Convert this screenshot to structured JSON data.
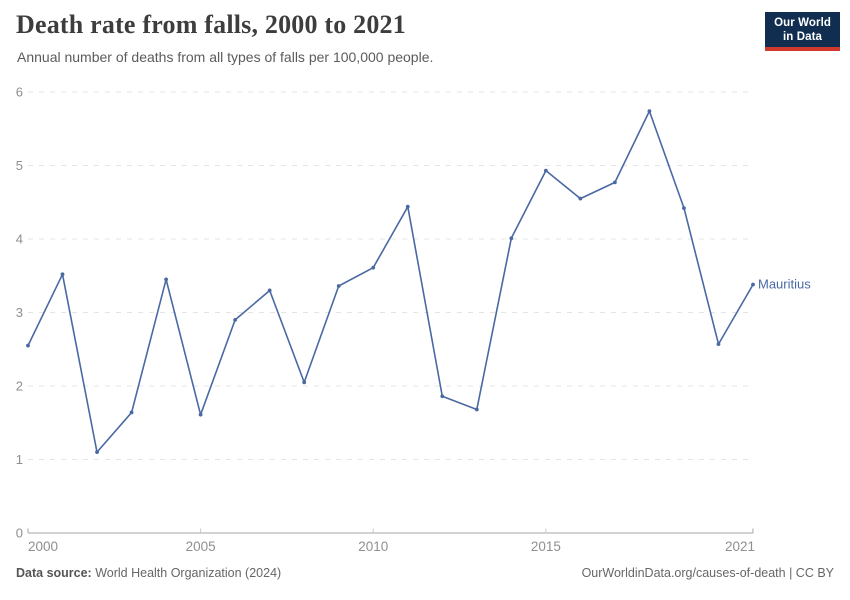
{
  "header": {
    "title": "Death rate from falls, 2000 to 2021",
    "subtitle": "Annual number of deaths from all types of falls per 100,000 people.",
    "logo": {
      "line1": "Our World",
      "line2": "in Data"
    }
  },
  "chart_data": {
    "type": "line",
    "title": "Death rate from falls, 2000 to 2021",
    "xlabel": "",
    "ylabel": "",
    "x": [
      2000,
      2001,
      2002,
      2003,
      2004,
      2005,
      2006,
      2007,
      2008,
      2009,
      2010,
      2011,
      2012,
      2013,
      2014,
      2015,
      2016,
      2017,
      2018,
      2019,
      2020,
      2021
    ],
    "series": [
      {
        "name": "Mauritius",
        "color": "#4a69a3",
        "values": [
          2.55,
          3.52,
          1.1,
          1.64,
          3.45,
          1.61,
          2.9,
          3.3,
          2.05,
          3.36,
          3.61,
          4.44,
          1.86,
          1.68,
          4.01,
          4.93,
          4.55,
          4.77,
          5.74,
          4.42,
          2.57,
          3.38
        ]
      }
    ],
    "ylim": [
      0,
      6
    ],
    "yticks": [
      0,
      1,
      2,
      3,
      4,
      5,
      6
    ],
    "xticks": [
      2000,
      2005,
      2010,
      2015,
      2021
    ],
    "grid": "horizontal-dashed",
    "legend_position": "end-of-line-label"
  },
  "footer": {
    "source_label": "Data source:",
    "source_value": " World Health Organization (2024)",
    "credit": "OurWorldinData.org/causes-of-death | CC BY"
  },
  "colors": {
    "series_line": "#4a69a3",
    "gridline": "#e4e4e4",
    "axis": "#a5a5a5",
    "mid_tick": "#c9c9c9",
    "tick_label": "#8f8f8f",
    "title_text": "#3d3d3d",
    "subtitle_text": "#5b5b5b",
    "footer_text": "#666666",
    "logo_background": "#112e51",
    "logo_underline": "#d0392e"
  }
}
